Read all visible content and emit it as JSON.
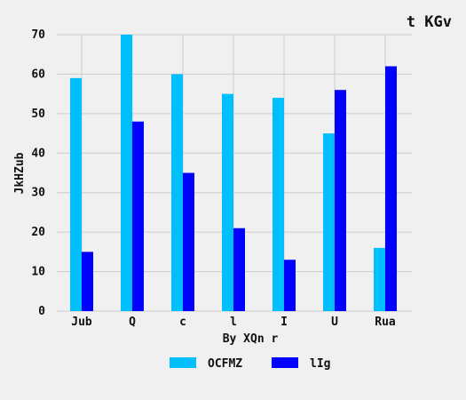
{
  "chart_data": {
    "type": "bar",
    "title": "t KGv",
    "xlabel": "By XQn r",
    "ylabel": "JkHZub",
    "categories": [
      "Jub",
      "Q",
      "c",
      "l",
      "I",
      "U",
      "Rua"
    ],
    "series": [
      {
        "name": "OCFMZ",
        "color": "#00bfff",
        "values": [
          59,
          70,
          60,
          55,
          54,
          45,
          16
        ]
      },
      {
        "name": "lIg",
        "color": "#0000ff",
        "values": [
          15,
          48,
          35,
          21,
          13,
          56,
          62
        ]
      }
    ],
    "ylim": [
      0,
      70
    ],
    "yticks": [
      0,
      10,
      20,
      30,
      40,
      50,
      60,
      70
    ],
    "grid": true,
    "legend_position": "bottom-center",
    "grid_color": "#cbcbcb",
    "background": "#f0f0f0"
  }
}
